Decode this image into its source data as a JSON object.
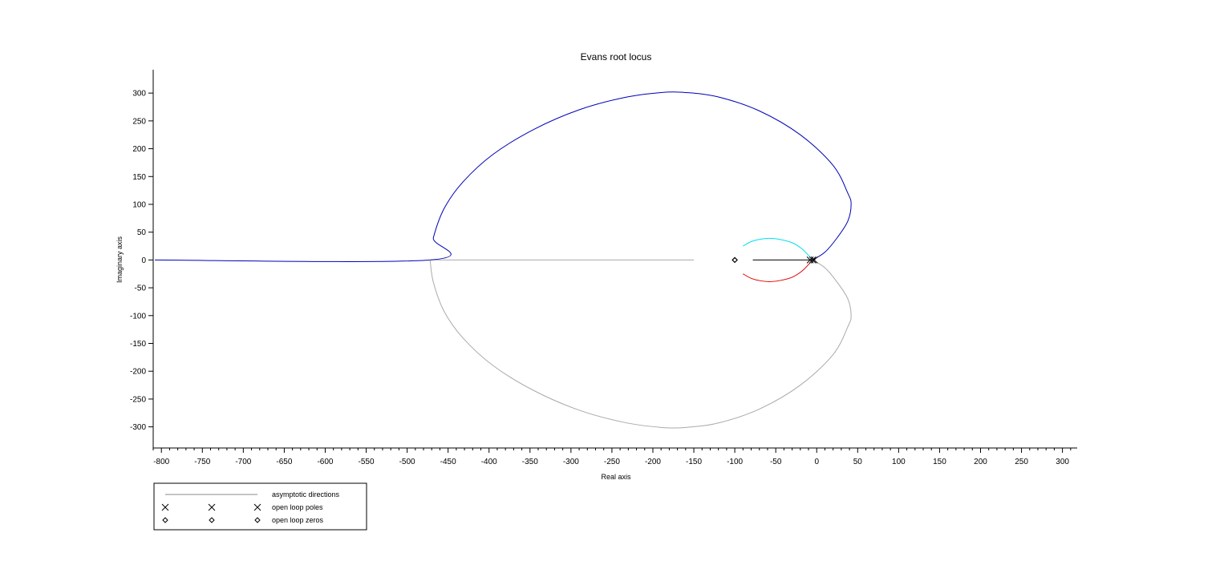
{
  "chart_data": {
    "type": "line",
    "title": "Evans root locus",
    "xlabel": "Real axis",
    "ylabel": "Imaginary axis",
    "xlim": [
      -810,
      318
    ],
    "ylim": [
      -338,
      342
    ],
    "xticks": [
      -800,
      -750,
      -700,
      -650,
      -600,
      -550,
      -500,
      -450,
      -400,
      -350,
      -300,
      -250,
      -200,
      -150,
      -100,
      -50,
      0,
      50,
      100,
      150,
      200,
      250,
      300
    ],
    "yticks": [
      300,
      250,
      200,
      150,
      100,
      50,
      0,
      -50,
      -100,
      -150,
      -200,
      -250,
      -300
    ],
    "grid": false,
    "legend_position": "bottom-left",
    "poles": [
      [
        -5,
        0
      ],
      [
        -8,
        0
      ],
      [
        -3,
        0
      ]
    ],
    "zeros": [
      [
        -100,
        0
      ]
    ],
    "series": [
      {
        "color": "#0000b8",
        "points": [
          [
            -808,
            0
          ],
          [
            -472,
            0
          ],
          [
            -468,
            40
          ],
          [
            -455,
            92
          ],
          [
            -432,
            140
          ],
          [
            -395,
            190
          ],
          [
            -345,
            235
          ],
          [
            -290,
            270
          ],
          [
            -235,
            292
          ],
          [
            -190,
            301
          ],
          [
            -160,
            301
          ],
          [
            -120,
            293
          ],
          [
            -70,
            268
          ],
          [
            -20,
            225
          ],
          [
            20,
            170
          ],
          [
            38,
            120
          ],
          [
            42,
            100
          ],
          [
            38,
            70
          ],
          [
            25,
            40
          ],
          [
            10,
            14
          ],
          [
            -5,
            0
          ]
        ]
      },
      {
        "color": "#aaaaaa",
        "points": [
          [
            -472,
            0
          ],
          [
            -468,
            -40
          ],
          [
            -455,
            -92
          ],
          [
            -432,
            -140
          ],
          [
            -395,
            -190
          ],
          [
            -345,
            -235
          ],
          [
            -290,
            -270
          ],
          [
            -235,
            -292
          ],
          [
            -190,
            -301
          ],
          [
            -160,
            -301
          ],
          [
            -120,
            -293
          ],
          [
            -70,
            -268
          ],
          [
            -20,
            -225
          ],
          [
            20,
            -170
          ],
          [
            38,
            -120
          ],
          [
            42,
            -100
          ],
          [
            38,
            -70
          ],
          [
            25,
            -40
          ],
          [
            10,
            -14
          ],
          [
            -5,
            0
          ]
        ]
      },
      {
        "color": "#00e0f0",
        "points": [
          [
            -90,
            25
          ],
          [
            -80,
            33
          ],
          [
            -70,
            37
          ],
          [
            -58,
            39
          ],
          [
            -45,
            37
          ],
          [
            -30,
            31
          ],
          [
            -18,
            20
          ],
          [
            -8,
            5
          ]
        ]
      },
      {
        "color": "#e00000",
        "points": [
          [
            -90,
            -25
          ],
          [
            -80,
            -33
          ],
          [
            -70,
            -37
          ],
          [
            -58,
            -39
          ],
          [
            -45,
            -37
          ],
          [
            -30,
            -31
          ],
          [
            -18,
            -20
          ],
          [
            -8,
            -5
          ]
        ]
      },
      {
        "color": "#000000",
        "points": [
          [
            -78,
            0
          ],
          [
            -4,
            0
          ]
        ]
      }
    ],
    "asymptotes": {
      "color": "#aaaaaa",
      "points": [
        [
          -472,
          0
        ],
        [
          -150,
          0
        ]
      ]
    },
    "legend": {
      "entries": [
        {
          "label": "asymptotic directions",
          "marker": "line"
        },
        {
          "label": "open loop poles",
          "marker": "cross"
        },
        {
          "label": "open loop zeros",
          "marker": "diamond"
        }
      ]
    }
  }
}
